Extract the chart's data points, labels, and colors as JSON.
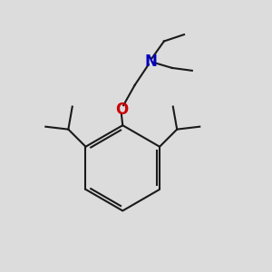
{
  "background_color": "#dcdcdc",
  "bond_color": "#1a1a1a",
  "nitrogen_color": "#0000bb",
  "oxygen_color": "#cc0000",
  "line_width": 1.5,
  "figsize": [
    3.0,
    3.0
  ],
  "dpi": 100
}
